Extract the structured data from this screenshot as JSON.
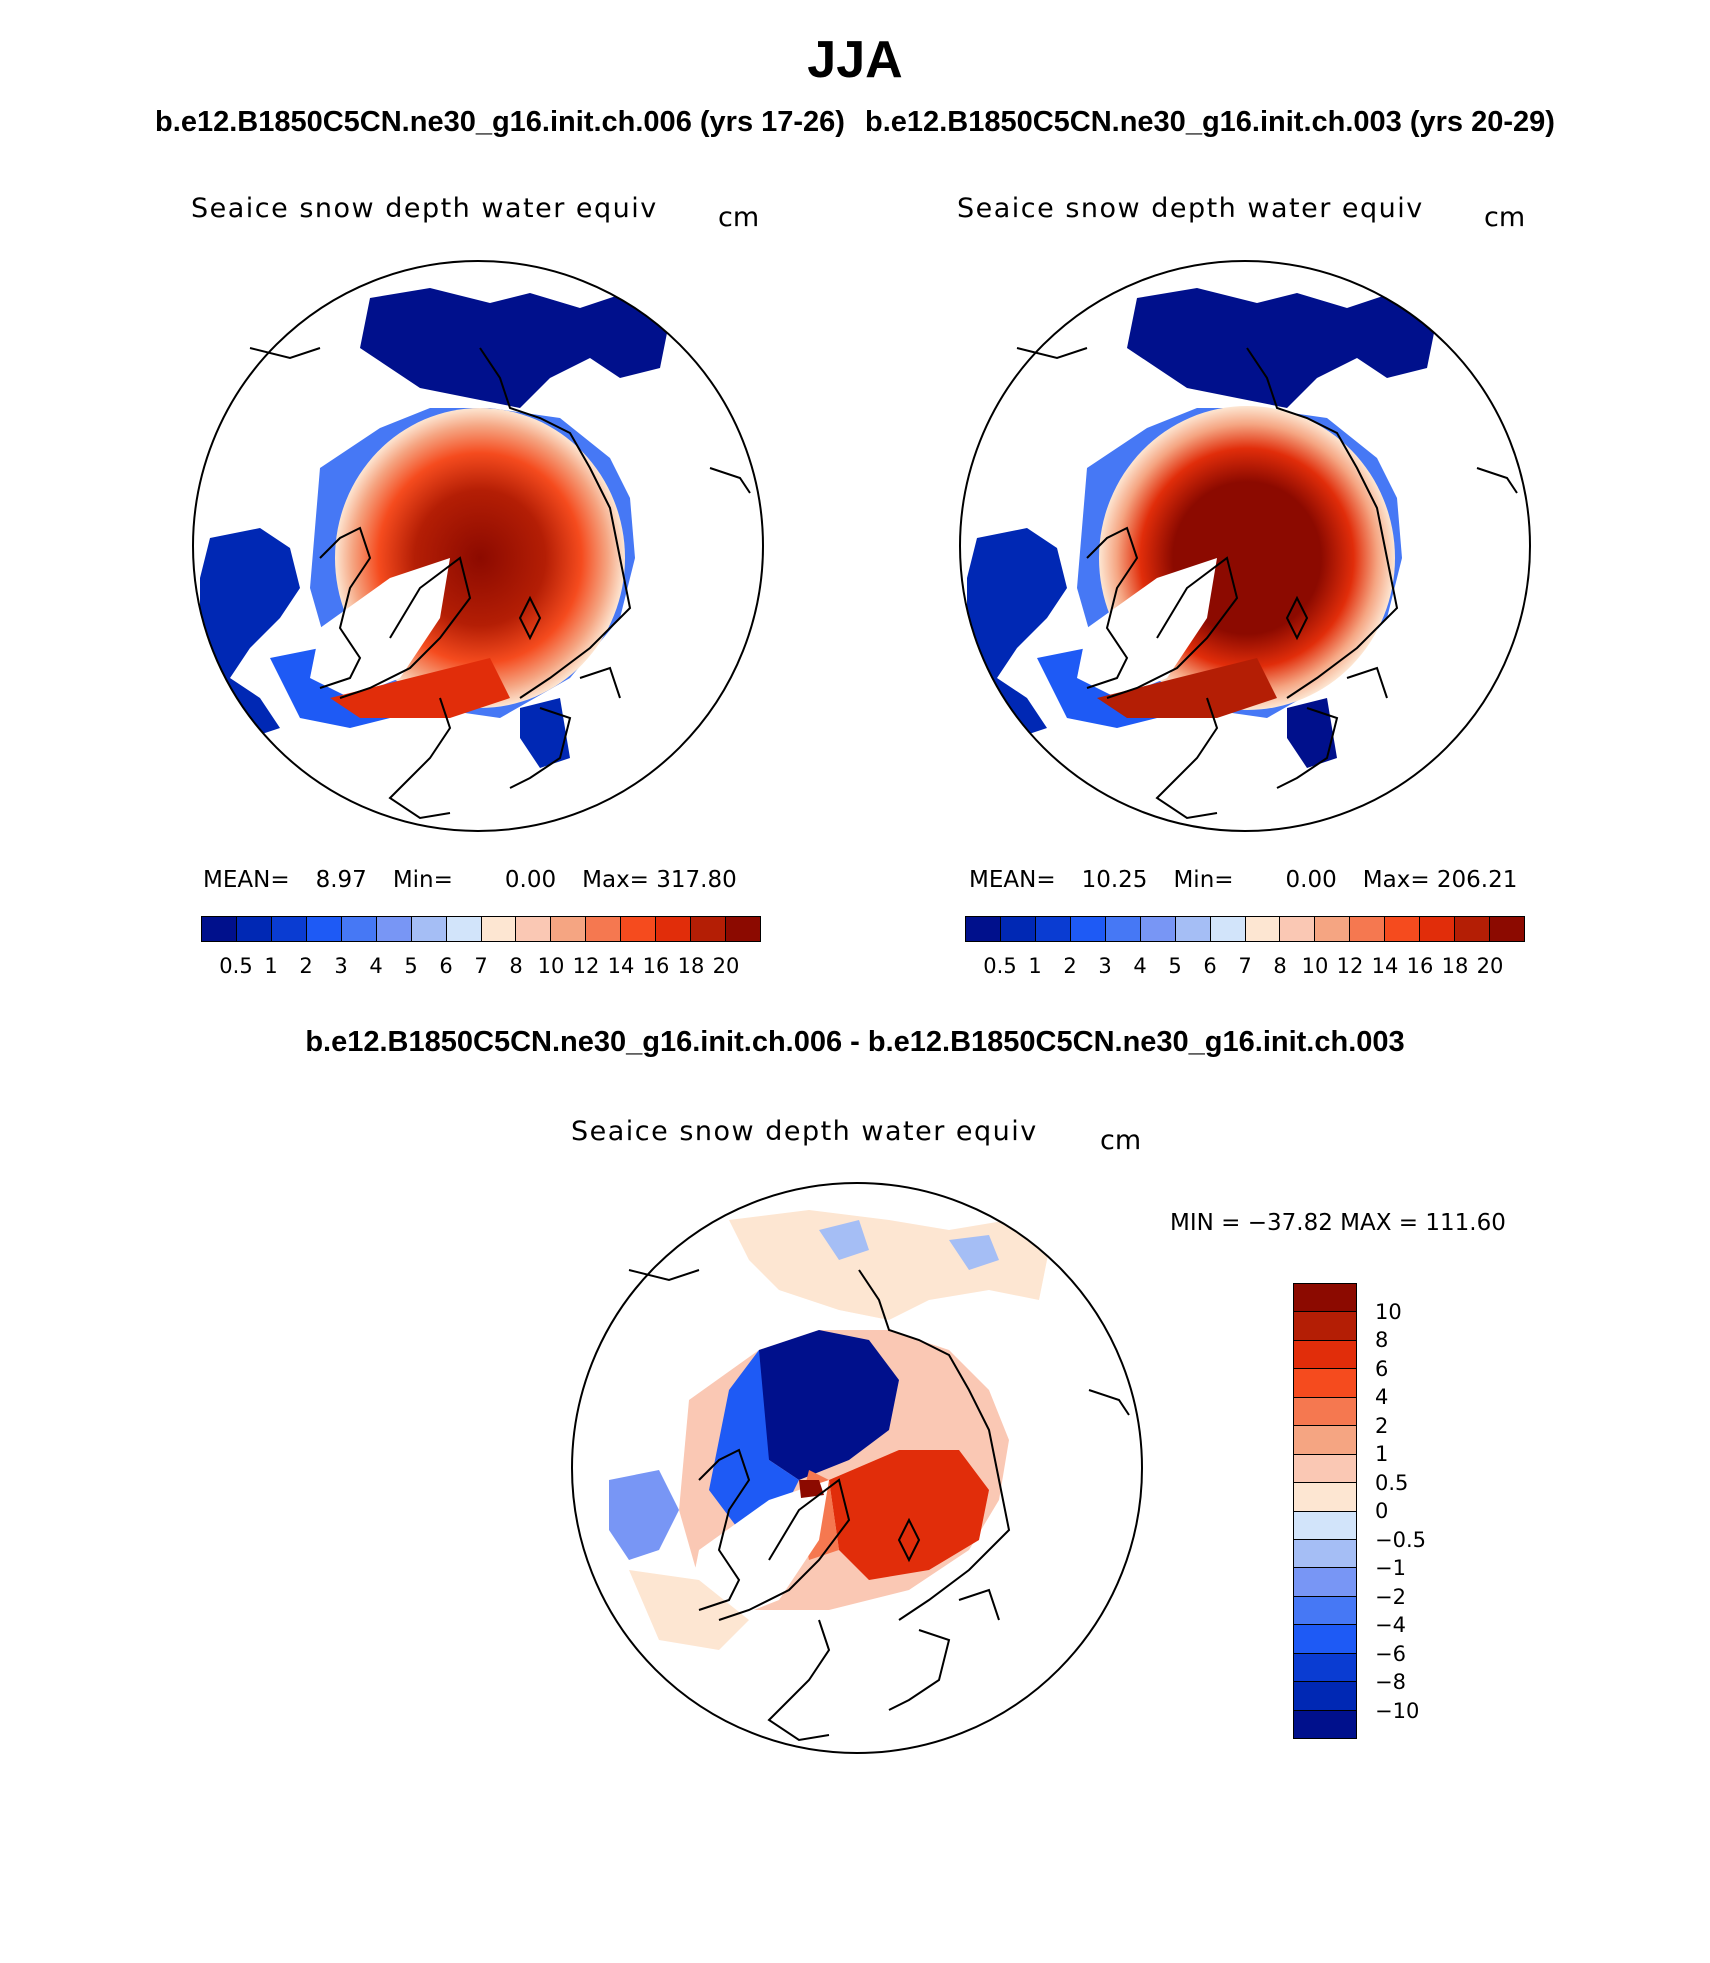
{
  "title": "JJA",
  "cases": {
    "case1": "b.e12.B1850C5CN.ne30_g16.init.ch.006 (yrs 17-26)",
    "case2": "b.e12.B1850C5CN.ne30_g16.init.ch.003 (yrs 20-29)"
  },
  "diff_title": "b.e12.B1850C5CN.ne30_g16.init.ch.006 - b.e12.B1850C5CN.ne30_g16.init.ch.003",
  "panels": [
    {
      "label": "Seaice snow depth water equiv",
      "units": "cm",
      "mean_label": "MEAN=",
      "mean": "8.97",
      "min_label": "Min=",
      "min": "0.00",
      "max_label": "Max=",
      "max": "317.80"
    },
    {
      "label": "Seaice snow depth water equiv",
      "units": "cm",
      "mean_label": "MEAN=",
      "mean": "10.25",
      "min_label": "Min=",
      "min": "0.00",
      "max_label": "Max=",
      "max": "206.21"
    }
  ],
  "diff_panel": {
    "label": "Seaice snow depth water equiv",
    "units": "cm",
    "range_text": "MIN = −37.82 MAX = 111.60"
  },
  "colorbar": {
    "colors": [
      "#00108c",
      "#0028b4",
      "#0a3cd2",
      "#1e5af5",
      "#4678f5",
      "#7896f5",
      "#a5bef5",
      "#d2e4fa",
      "#fde6d2",
      "#fac8b4",
      "#f5a582",
      "#f57850",
      "#f54b1e",
      "#e12d0a",
      "#b41e05",
      "#8c0a00"
    ],
    "labels": [
      "0.5",
      "1",
      "2",
      "3",
      "4",
      "5",
      "6",
      "7",
      "8",
      "10",
      "12",
      "14",
      "16",
      "18",
      "20"
    ]
  },
  "diff_colorbar": {
    "colors_top_to_bottom": [
      "#8c0a00",
      "#b41e05",
      "#e12d0a",
      "#f54b1e",
      "#f57850",
      "#f5a582",
      "#fac8b4",
      "#fde6d2",
      "#d2e4fa",
      "#a5bef5",
      "#7896f5",
      "#4678f5",
      "#1e5af5",
      "#0a3cd2",
      "#0028b4",
      "#00108c"
    ],
    "labels_top_to_bottom": [
      "10",
      "8",
      "6",
      "4",
      "2",
      "1",
      "0.5",
      "0",
      "−0.5",
      "−1",
      "−2",
      "−4",
      "−6",
      "−8",
      "−10"
    ]
  }
}
